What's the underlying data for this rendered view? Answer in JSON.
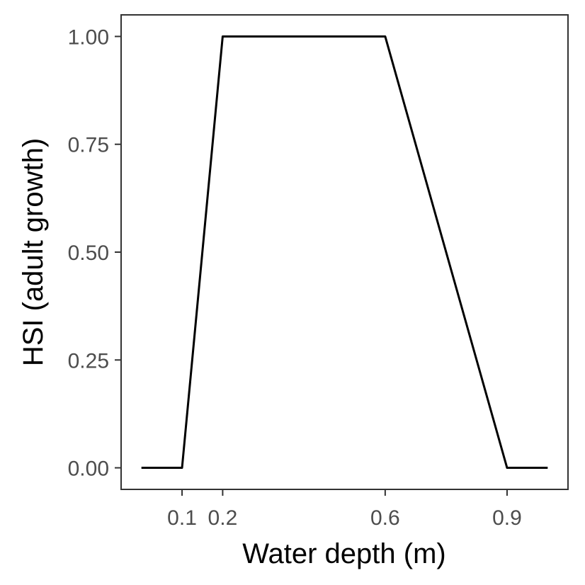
{
  "chart_data": {
    "type": "line",
    "title": "",
    "xlabel": "Water depth (m)",
    "ylabel": "HSI (adult growth)",
    "xlim": [
      -0.05,
      1.05
    ],
    "ylim": [
      -0.05,
      1.05
    ],
    "x_ticks": [
      0.1,
      0.2,
      0.6,
      0.9
    ],
    "x_tick_labels": [
      "0.1",
      "0.2",
      "0.6",
      "0.9"
    ],
    "y_ticks": [
      0.0,
      0.25,
      0.5,
      0.75,
      1.0
    ],
    "y_tick_labels": [
      "0.00",
      "0.25",
      "0.50",
      "0.75",
      "1.00"
    ],
    "grid": false,
    "series": [
      {
        "x": [
          0.0,
          0.1,
          0.2,
          0.6,
          0.9,
          1.0
        ],
        "y": [
          0.0,
          0.0,
          1.0,
          1.0,
          0.0,
          0.0
        ],
        "color": "#000000"
      }
    ]
  }
}
